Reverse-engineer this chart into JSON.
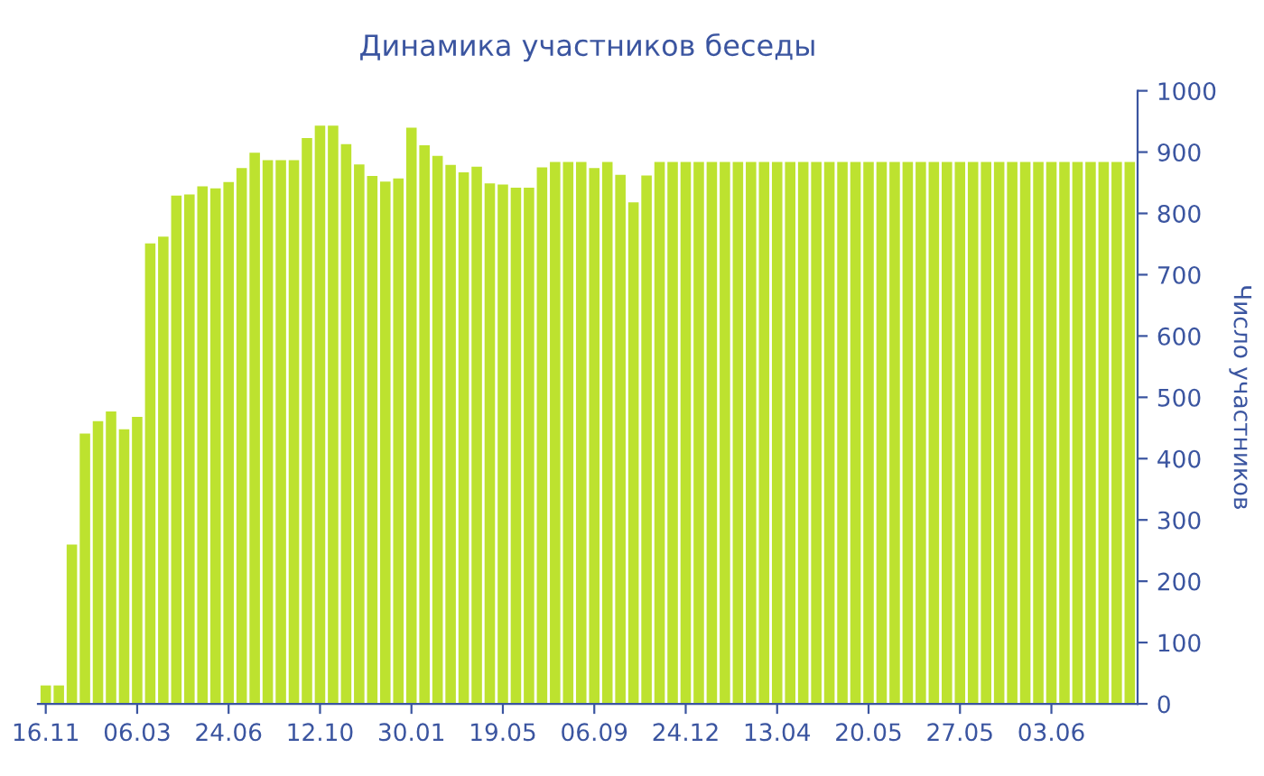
{
  "chart_data": {
    "type": "bar",
    "title": "Динамика участников беседы",
    "ylabel": "Число участников",
    "categories": [
      "16.11",
      null,
      null,
      null,
      null,
      null,
      null,
      "06.03",
      null,
      null,
      null,
      null,
      null,
      null,
      "24.06",
      null,
      null,
      null,
      null,
      null,
      null,
      "12.10",
      null,
      null,
      null,
      null,
      null,
      null,
      "30.01",
      null,
      null,
      null,
      null,
      null,
      null,
      "19.05",
      null,
      null,
      null,
      null,
      null,
      null,
      "06.09",
      null,
      null,
      null,
      null,
      null,
      null,
      "24.12",
      null,
      null,
      null,
      null,
      null,
      null,
      "13.04",
      null,
      null,
      null,
      null,
      null,
      null,
      "20.05",
      null,
      null,
      null,
      null,
      null,
      null,
      "27.05",
      null,
      null,
      null,
      null,
      null,
      null,
      "03.06",
      null,
      null,
      null,
      null,
      null,
      null
    ],
    "values": [
      30,
      30,
      260,
      441,
      461,
      477,
      448,
      468,
      751,
      762,
      829,
      831,
      844,
      841,
      851,
      874,
      899,
      887,
      887,
      887,
      923,
      943,
      943,
      913,
      880,
      861,
      852,
      857,
      940,
      911,
      894,
      879,
      867,
      876,
      849,
      847,
      842,
      842,
      875,
      884,
      884,
      884,
      874,
      884,
      863,
      818,
      862,
      884,
      884,
      884,
      884,
      884,
      884,
      884,
      884,
      884,
      884,
      884,
      884,
      884,
      884,
      884,
      884,
      884,
      884,
      884,
      884,
      884,
      884,
      884,
      884,
      884,
      884,
      884,
      884,
      884,
      884,
      884,
      884,
      884,
      884,
      884,
      884,
      884
    ],
    "color": "#bde22f",
    "ylim": [
      0,
      1000
    ],
    "yticks": [
      0,
      100,
      200,
      300,
      400,
      500,
      600,
      700,
      800,
      900,
      1000
    ]
  }
}
